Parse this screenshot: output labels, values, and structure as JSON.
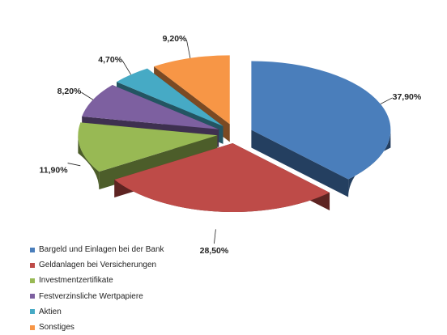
{
  "chart_data": {
    "type": "pie",
    "style": "3d-exploded",
    "categories": [
      "Bargeld und Einlagen bei der Bank",
      "Geldanlagen bei Versicherungen",
      "Investmentzertifikate",
      "Festverzinsliche Wertpapiere",
      "Aktien",
      "Sonstiges"
    ],
    "values": [
      37.9,
      28.5,
      11.9,
      8.2,
      4.7,
      9.2
    ],
    "value_labels": [
      "37,90%",
      "28,50%",
      "11,90%",
      "8,20%",
      "4,70%",
      "9,20%"
    ],
    "colors": [
      "#4a7ebb",
      "#be4b48",
      "#98b954",
      "#7d60a0",
      "#46aac5",
      "#f79646"
    ],
    "side_colors": [
      "#243f60",
      "#5e2422",
      "#4c5d2a",
      "#3e3050",
      "#235562",
      "#7b4a23"
    ],
    "legend_position": "bottom-left",
    "title": ""
  }
}
